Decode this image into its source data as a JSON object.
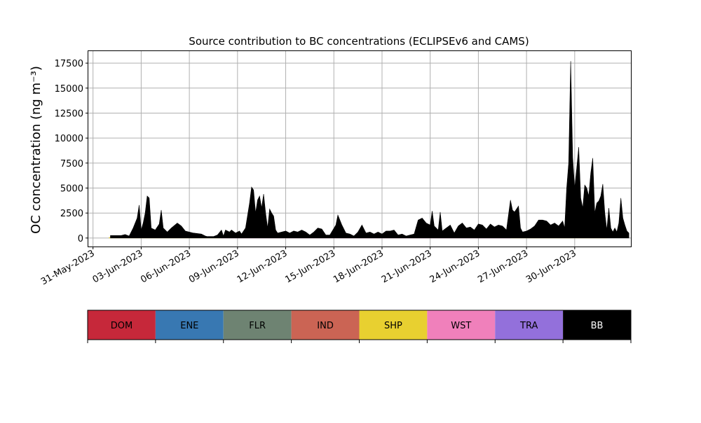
{
  "chart_data": {
    "type": "area",
    "title": "Source contribution to BC concentrations (ECLIPSEv6 and CAMS)",
    "ylabel": "OC concentration (ng m⁻³)",
    "xlabel": "",
    "x_range": [
      "2023-05-30T17:00",
      "2023-07-03T12:00"
    ],
    "ylim": [
      -850,
      18700
    ],
    "grid": true,
    "x_ticks": [
      "2023-05-31",
      "2023-06-03",
      "2023-06-06",
      "2023-06-09",
      "2023-06-12",
      "2023-06-15",
      "2023-06-18",
      "2023-06-21",
      "2023-06-24",
      "2023-06-27",
      "2023-06-30"
    ],
    "x_tick_labels": [
      "31-May-2023",
      "03-Jun-2023",
      "06-Jun-2023",
      "09-Jun-2023",
      "12-Jun-2023",
      "15-Jun-2023",
      "18-Jun-2023",
      "21-Jun-2023",
      "24-Jun-2023",
      "27-Jun-2023",
      "30-Jun-2023"
    ],
    "y_ticks": [
      0,
      2500,
      5000,
      7500,
      10000,
      12500,
      15000,
      17500
    ],
    "y_tick_labels": [
      "0",
      "2500",
      "5000",
      "7500",
      "10000",
      "12500",
      "15000",
      "17500"
    ],
    "series": [
      {
        "name": "DOM",
        "color": "#c6283a",
        "points": []
      },
      {
        "name": "ENE",
        "color": "#3878b2",
        "points": []
      },
      {
        "name": "FLR",
        "color": "#6e8372",
        "points": []
      },
      {
        "name": "IND",
        "color": "#cb6454",
        "points": []
      },
      {
        "name": "SHP",
        "color": "#e8d030",
        "points": [
          [
            "2023-06-01T00:00",
            60
          ],
          [
            "2023-06-20T00:00",
            60
          ],
          [
            "2023-07-02T00:00",
            60
          ]
        ]
      },
      {
        "name": "WST",
        "color": "#f080bb",
        "points": [
          [
            "2023-06-08T00:00",
            30
          ],
          [
            "2023-06-10T12:00",
            90
          ],
          [
            "2023-06-14T12:00",
            110
          ],
          [
            "2023-06-17T12:00",
            90
          ],
          [
            "2023-06-26T00:00",
            40
          ]
        ]
      },
      {
        "name": "TRA",
        "color": "#9370db",
        "points": [
          [
            "2023-06-08T00:00",
            20
          ],
          [
            "2023-06-10T12:00",
            40
          ],
          [
            "2023-06-14T12:00",
            50
          ],
          [
            "2023-06-26T00:00",
            20
          ]
        ]
      },
      {
        "name": "BB",
        "color": "#000000",
        "points": [
          [
            "2023-06-01T02:00",
            250
          ],
          [
            "2023-06-01T18:00",
            250
          ],
          [
            "2023-06-02T00:00",
            350
          ],
          [
            "2023-06-02T06:00",
            200
          ],
          [
            "2023-06-02T12:00",
            1000
          ],
          [
            "2023-06-02T18:00",
            2000
          ],
          [
            "2023-06-02T21:00",
            3300
          ],
          [
            "2023-06-03T00:00",
            800
          ],
          [
            "2023-06-03T03:00",
            1500
          ],
          [
            "2023-06-03T06:00",
            2500
          ],
          [
            "2023-06-03T09:00",
            4200
          ],
          [
            "2023-06-03T12:00",
            4000
          ],
          [
            "2023-06-03T15:00",
            1000
          ],
          [
            "2023-06-03T21:00",
            800
          ],
          [
            "2023-06-04T03:00",
            1400
          ],
          [
            "2023-06-04T06:00",
            2800
          ],
          [
            "2023-06-04T09:00",
            1000
          ],
          [
            "2023-06-04T15:00",
            600
          ],
          [
            "2023-06-04T21:00",
            1000
          ],
          [
            "2023-06-05T06:00",
            1500
          ],
          [
            "2023-06-05T12:00",
            1200
          ],
          [
            "2023-06-05T18:00",
            700
          ],
          [
            "2023-06-06T06:00",
            500
          ],
          [
            "2023-06-06T18:00",
            400
          ],
          [
            "2023-06-07T00:00",
            200
          ],
          [
            "2023-06-07T03:00",
            150
          ],
          [
            "2023-06-07T12:00",
            150
          ],
          [
            "2023-06-07T18:00",
            300
          ],
          [
            "2023-06-08T00:00",
            800
          ],
          [
            "2023-06-08T03:00",
            200
          ],
          [
            "2023-06-08T06:00",
            800
          ],
          [
            "2023-06-08T12:00",
            600
          ],
          [
            "2023-06-08T15:00",
            800
          ],
          [
            "2023-06-08T21:00",
            500
          ],
          [
            "2023-06-09T03:00",
            700
          ],
          [
            "2023-06-09T06:00",
            400
          ],
          [
            "2023-06-09T12:00",
            1000
          ],
          [
            "2023-06-09T18:00",
            3500
          ],
          [
            "2023-06-09T21:00",
            5100
          ],
          [
            "2023-06-10T00:00",
            4800
          ],
          [
            "2023-06-10T03:00",
            2500
          ],
          [
            "2023-06-10T06:00",
            3800
          ],
          [
            "2023-06-10T09:00",
            4200
          ],
          [
            "2023-06-10T12:00",
            3000
          ],
          [
            "2023-06-10T15:00",
            4400
          ],
          [
            "2023-06-10T18:00",
            2500
          ],
          [
            "2023-06-10T21:00",
            1000
          ],
          [
            "2023-06-11T00:00",
            2900
          ],
          [
            "2023-06-11T03:00",
            2500
          ],
          [
            "2023-06-11T06:00",
            2200
          ],
          [
            "2023-06-11T09:00",
            800
          ],
          [
            "2023-06-11T12:00",
            500
          ],
          [
            "2023-06-12T00:00",
            700
          ],
          [
            "2023-06-12T06:00",
            500
          ],
          [
            "2023-06-12T12:00",
            700
          ],
          [
            "2023-06-12T18:00",
            600
          ],
          [
            "2023-06-13T00:00",
            800
          ],
          [
            "2023-06-13T06:00",
            600
          ],
          [
            "2023-06-13T12:00",
            300
          ],
          [
            "2023-06-13T18:00",
            600
          ],
          [
            "2023-06-14T00:00",
            1000
          ],
          [
            "2023-06-14T06:00",
            900
          ],
          [
            "2023-06-14T12:00",
            300
          ],
          [
            "2023-06-14T18:00",
            300
          ],
          [
            "2023-06-15T03:00",
            1300
          ],
          [
            "2023-06-15T06:00",
            2300
          ],
          [
            "2023-06-15T12:00",
            1300
          ],
          [
            "2023-06-15T18:00",
            500
          ],
          [
            "2023-06-16T00:00",
            400
          ],
          [
            "2023-06-16T06:00",
            200
          ],
          [
            "2023-06-16T12:00",
            600
          ],
          [
            "2023-06-16T18:00",
            1300
          ],
          [
            "2023-06-17T00:00",
            500
          ],
          [
            "2023-06-17T06:00",
            600
          ],
          [
            "2023-06-17T12:00",
            400
          ],
          [
            "2023-06-17T18:00",
            600
          ],
          [
            "2023-06-18T00:00",
            400
          ],
          [
            "2023-06-18T06:00",
            700
          ],
          [
            "2023-06-18T12:00",
            700
          ],
          [
            "2023-06-18T18:00",
            800
          ],
          [
            "2023-06-19T00:00",
            300
          ],
          [
            "2023-06-19T06:00",
            400
          ],
          [
            "2023-06-19T12:00",
            200
          ],
          [
            "2023-06-19T18:00",
            300
          ],
          [
            "2023-06-20T00:00",
            400
          ],
          [
            "2023-06-20T06:00",
            1800
          ],
          [
            "2023-06-20T12:00",
            2000
          ],
          [
            "2023-06-20T18:00",
            1500
          ],
          [
            "2023-06-21T00:00",
            1300
          ],
          [
            "2023-06-21T03:00",
            2700
          ],
          [
            "2023-06-21T06:00",
            1200
          ],
          [
            "2023-06-21T12:00",
            800
          ],
          [
            "2023-06-21T15:00",
            2600
          ],
          [
            "2023-06-21T18:00",
            700
          ],
          [
            "2023-06-22T00:00",
            1000
          ],
          [
            "2023-06-22T06:00",
            1300
          ],
          [
            "2023-06-22T12:00",
            500
          ],
          [
            "2023-06-22T18:00",
            1200
          ],
          [
            "2023-06-23T00:00",
            1500
          ],
          [
            "2023-06-23T06:00",
            1000
          ],
          [
            "2023-06-23T12:00",
            1100
          ],
          [
            "2023-06-23T18:00",
            800
          ],
          [
            "2023-06-24T00:00",
            1400
          ],
          [
            "2023-06-24T06:00",
            1300
          ],
          [
            "2023-06-24T12:00",
            900
          ],
          [
            "2023-06-24T18:00",
            1400
          ],
          [
            "2023-06-25T00:00",
            1100
          ],
          [
            "2023-06-25T06:00",
            1300
          ],
          [
            "2023-06-25T12:00",
            1200
          ],
          [
            "2023-06-25T18:00",
            800
          ],
          [
            "2023-06-26T00:00",
            3800
          ],
          [
            "2023-06-26T03:00",
            2800
          ],
          [
            "2023-06-26T06:00",
            2600
          ],
          [
            "2023-06-26T12:00",
            3200
          ],
          [
            "2023-06-26T15:00",
            1000
          ],
          [
            "2023-06-26T18:00",
            600
          ],
          [
            "2023-06-27T00:00",
            700
          ],
          [
            "2023-06-27T06:00",
            900
          ],
          [
            "2023-06-27T12:00",
            1200
          ],
          [
            "2023-06-27T18:00",
            1800
          ],
          [
            "2023-06-28T00:00",
            1800
          ],
          [
            "2023-06-28T06:00",
            1700
          ],
          [
            "2023-06-28T12:00",
            1300
          ],
          [
            "2023-06-28T18:00",
            1500
          ],
          [
            "2023-06-29T00:00",
            1200
          ],
          [
            "2023-06-29T06:00",
            1700
          ],
          [
            "2023-06-29T09:00",
            1000
          ],
          [
            "2023-06-29T12:00",
            5000
          ],
          [
            "2023-06-29T15:00",
            7500
          ],
          [
            "2023-06-29T18:00",
            17700
          ],
          [
            "2023-06-29T21:00",
            8000
          ],
          [
            "2023-06-30T00:00",
            5000
          ],
          [
            "2023-06-30T03:00",
            7000
          ],
          [
            "2023-06-30T06:00",
            9100
          ],
          [
            "2023-06-30T09:00",
            4000
          ],
          [
            "2023-06-30T12:00",
            3000
          ],
          [
            "2023-06-30T15:00",
            5300
          ],
          [
            "2023-06-30T18:00",
            5000
          ],
          [
            "2023-06-30T21:00",
            4200
          ],
          [
            "2023-07-01T00:00",
            6500
          ],
          [
            "2023-07-01T03:00",
            8000
          ],
          [
            "2023-07-01T06:00",
            2500
          ],
          [
            "2023-07-01T09:00",
            3500
          ],
          [
            "2023-07-01T12:00",
            3700
          ],
          [
            "2023-07-01T15:00",
            4200
          ],
          [
            "2023-07-01T18:00",
            5400
          ],
          [
            "2023-07-01T21:00",
            2500
          ],
          [
            "2023-07-02T00:00",
            800
          ],
          [
            "2023-07-02T03:00",
            3000
          ],
          [
            "2023-07-02T06:00",
            1000
          ],
          [
            "2023-07-02T09:00",
            600
          ],
          [
            "2023-07-02T12:00",
            1000
          ],
          [
            "2023-07-02T15:00",
            600
          ],
          [
            "2023-07-02T18:00",
            1500
          ],
          [
            "2023-07-02T21:00",
            4000
          ],
          [
            "2023-07-03T00:00",
            2000
          ],
          [
            "2023-07-03T03:00",
            1300
          ],
          [
            "2023-07-03T06:00",
            700
          ],
          [
            "2023-07-03T09:00",
            500
          ]
        ]
      }
    ],
    "colorbar_labels": [
      "DOM",
      "ENE",
      "FLR",
      "IND",
      "SHP",
      "WST",
      "TRA",
      "BB"
    ]
  }
}
